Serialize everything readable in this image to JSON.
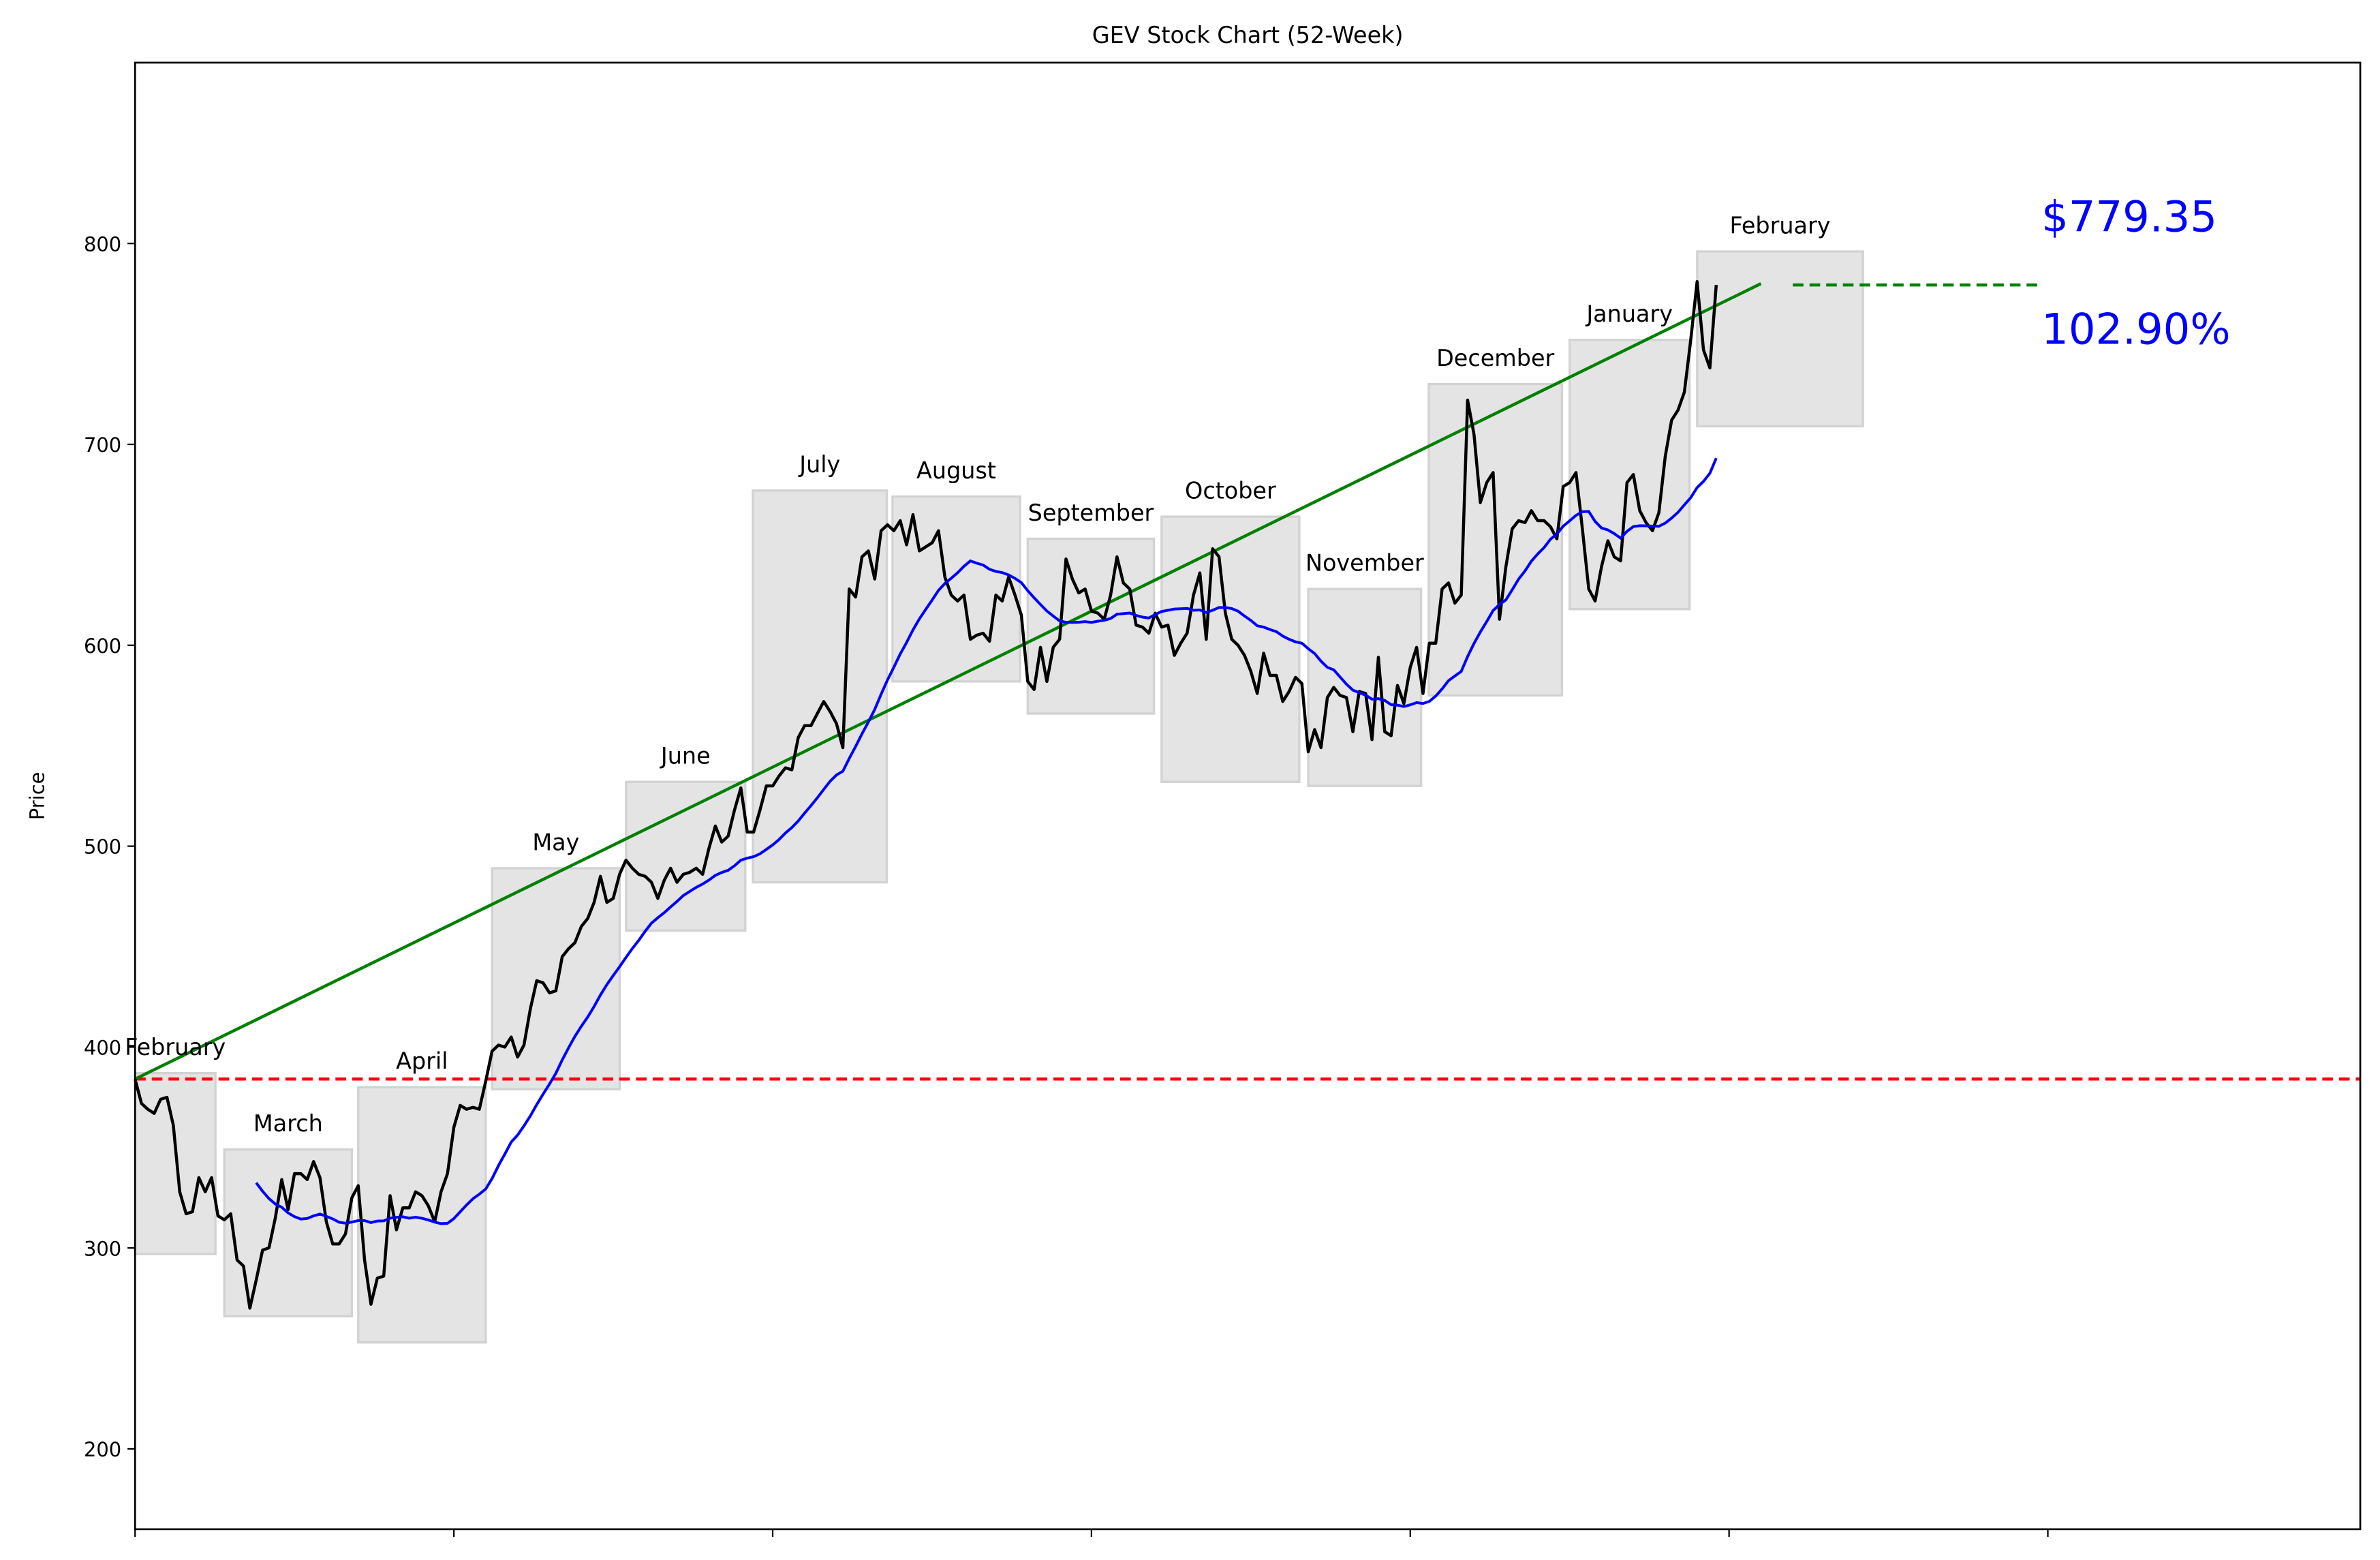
{
  "chart_data": {
    "type": "line",
    "title": "GEV Stock Chart (52-Week)",
    "xlabel": "",
    "ylabel": "Price",
    "xlim": [
      0,
      349
    ],
    "ylim": [
      160,
      890
    ],
    "xticks": [
      0,
      50,
      100,
      150,
      200,
      250,
      300
    ],
    "yticks": [
      200,
      300,
      400,
      500,
      600,
      700,
      800
    ],
    "grid": false,
    "price": [
      384,
      372,
      369,
      367,
      374,
      375,
      361,
      328,
      317,
      318,
      335,
      328,
      335,
      316,
      314,
      317,
      294,
      291,
      270,
      284,
      299,
      300,
      315,
      334,
      319,
      337,
      337,
      334,
      343,
      335,
      313,
      302,
      302,
      307,
      325,
      331,
      294,
      272,
      285,
      286,
      326,
      309,
      320,
      320,
      328,
      326,
      321,
      313,
      328,
      337,
      360,
      371,
      369,
      370,
      369,
      383,
      398,
      401,
      400,
      405,
      395,
      401,
      419,
      433,
      432,
      427,
      428,
      445,
      449,
      452,
      460,
      464,
      472,
      485,
      472,
      474,
      486,
      493,
      489,
      486,
      485,
      482,
      474,
      483,
      489,
      482,
      486,
      487,
      489,
      486,
      499,
      510,
      502,
      505,
      518,
      529,
      507,
      507,
      518,
      530,
      530,
      535,
      539,
      538,
      554,
      560,
      560,
      566,
      572,
      567,
      561,
      549,
      628,
      624,
      644,
      647,
      633,
      657,
      660,
      657,
      662,
      650,
      665,
      647,
      649,
      651,
      657,
      634,
      625,
      622,
      625,
      603,
      605,
      606,
      602,
      625,
      622,
      634,
      625,
      615,
      582,
      578,
      599,
      582,
      599,
      603,
      643,
      633,
      626,
      628,
      617,
      616,
      613,
      625,
      644,
      631,
      628,
      610,
      609,
      606,
      616,
      609,
      610,
      595,
      601,
      606,
      625,
      636,
      603,
      648,
      644,
      616,
      603,
      600,
      595,
      587,
      576,
      596,
      585,
      585,
      572,
      577,
      584,
      581,
      547,
      558,
      549,
      574,
      579,
      575,
      574,
      557,
      577,
      576,
      553,
      594,
      557,
      555,
      580,
      571,
      589,
      599,
      576,
      601,
      601,
      628,
      631,
      621,
      625,
      722,
      705,
      671,
      681,
      686,
      613,
      639,
      658,
      662,
      661,
      667,
      662,
      662,
      659,
      653,
      679,
      681,
      686,
      658,
      628,
      622,
      639,
      652,
      644,
      642,
      681,
      685,
      667,
      661,
      657,
      666,
      694,
      712,
      717,
      726,
      752,
      781,
      747,
      738,
      779.35
    ],
    "moving_average_window": 20,
    "months": [
      {
        "label": "February",
        "start": 0,
        "end": 12.6,
        "low": 297,
        "high": 387
      },
      {
        "label": "March",
        "start": 14,
        "end": 34,
        "low": 266,
        "high": 349
      },
      {
        "label": "April",
        "start": 35,
        "end": 55,
        "low": 253,
        "high": 380
      },
      {
        "label": "May",
        "start": 56,
        "end": 76,
        "low": 379,
        "high": 489
      },
      {
        "label": "June",
        "start": 77,
        "end": 95.7,
        "low": 458,
        "high": 532
      },
      {
        "label": "July",
        "start": 96.9,
        "end": 117.9,
        "low": 482,
        "high": 677
      },
      {
        "label": "August",
        "start": 118.8,
        "end": 138.8,
        "low": 582,
        "high": 674
      },
      {
        "label": "September",
        "start": 140,
        "end": 159.8,
        "low": 566,
        "high": 653
      },
      {
        "label": "October",
        "start": 161,
        "end": 182.6,
        "low": 532,
        "high": 664
      },
      {
        "label": "November",
        "start": 184,
        "end": 201.7,
        "low": 530,
        "high": 628
      },
      {
        "label": "December",
        "start": 202.9,
        "end": 223.8,
        "low": 575,
        "high": 730
      },
      {
        "label": "January",
        "start": 225,
        "end": 243.8,
        "low": 618,
        "high": 752
      },
      {
        "label": "February",
        "start": 245,
        "end": 271,
        "low": 709,
        "high": 796
      }
    ],
    "trend_line": {
      "x": [
        0,
        255
      ],
      "y": [
        384.1,
        780
      ]
    },
    "current_price_line": {
      "x": [
        260,
        299
      ],
      "y": 779.35
    },
    "start_price_line": {
      "y": 384.1
    },
    "colors": {
      "price": "#000000",
      "moving_average": "#0000ff",
      "trend": "#008000",
      "start_price": "#ff0000",
      "annotation": "#0000ff",
      "month_box": "#e4e4e4"
    },
    "annotations": {
      "price_text": "$779.35",
      "change_text": "102.90%",
      "price_y": 806,
      "change_y": 750,
      "x": 299
    }
  }
}
